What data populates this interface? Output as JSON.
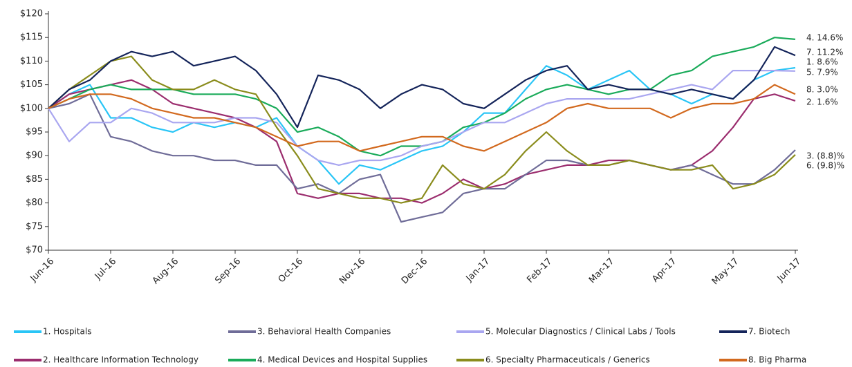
{
  "chart_data": {
    "type": "line",
    "categories": [
      "Jun-16",
      null,
      null,
      "Jul-16",
      null,
      null,
      "Aug-16",
      null,
      null,
      "Sep-16",
      null,
      null,
      "Oct-16",
      null,
      null,
      "Nov-16",
      null,
      null,
      "Dec-16",
      null,
      null,
      "Jan-17",
      null,
      null,
      "Feb-17",
      null,
      null,
      "Mar-17",
      null,
      null,
      "Apr-17",
      null,
      null,
      "May-17",
      null,
      null,
      "Jun-17"
    ],
    "ylim": [
      70,
      120
    ],
    "yticks": [
      {
        "value": 70,
        "label": "$70"
      },
      {
        "value": 75,
        "label": "$75"
      },
      {
        "value": 80,
        "label": "$80"
      },
      {
        "value": 85,
        "label": "$85"
      },
      {
        "value": 90,
        "label": "$90"
      },
      {
        "value": 95,
        "label": "$95"
      },
      {
        "value": 100,
        "label": "$100"
      },
      {
        "value": 105,
        "label": "$105"
      },
      {
        "value": 110,
        "label": "$110"
      },
      {
        "value": 115,
        "label": "$115"
      },
      {
        "value": 120,
        "label": "$120"
      }
    ],
    "grid": false,
    "legend": "bottom",
    "series": [
      {
        "name": "1. Hospitals",
        "color": "#29c5f6",
        "end_label": "1. 8.6%",
        "values": [
          100,
          103,
          105,
          98,
          98,
          96,
          95,
          97,
          96,
          97,
          96,
          98,
          92,
          89,
          84,
          88,
          87,
          89,
          91,
          92,
          95,
          99,
          99,
          104,
          109,
          107,
          104,
          106,
          108,
          104,
          103,
          101,
          103,
          102,
          106,
          108,
          108.6
        ]
      },
      {
        "name": "2. Healthcare Information Technology",
        "color": "#9b2d6e",
        "end_label": "2. 1.6%",
        "values": [
          100,
          103,
          104,
          105,
          106,
          104,
          101,
          100,
          99,
          98,
          96,
          93,
          82,
          81,
          82,
          82,
          81,
          81,
          80,
          82,
          85,
          83,
          84,
          86,
          87,
          88,
          88,
          89,
          89,
          88,
          87,
          88,
          91,
          96,
          102,
          103,
          101.6
        ]
      },
      {
        "name": "3. Behavioral Health Companies",
        "color": "#6f6c98",
        "end_label": "3. (8.8)%",
        "values": [
          100,
          101,
          103,
          94,
          93,
          91,
          90,
          90,
          89,
          89,
          88,
          88,
          83,
          84,
          82,
          85,
          86,
          76,
          77,
          78,
          82,
          83,
          83,
          86,
          89,
          89,
          88,
          88,
          89,
          88,
          87,
          88,
          86,
          84,
          84,
          87,
          91.2
        ]
      },
      {
        "name": "4. Medical Devices and Hospital Supplies",
        "color": "#1aab5a",
        "end_label": "4. 14.6%",
        "values": [
          100,
          102,
          104,
          105,
          104,
          104,
          104,
          103,
          103,
          103,
          102,
          100,
          95,
          96,
          94,
          91,
          90,
          92,
          92,
          93,
          96,
          97,
          99,
          102,
          104,
          105,
          104,
          103,
          104,
          104,
          107,
          108,
          111,
          112,
          113,
          115,
          114.6
        ]
      },
      {
        "name": "5. Molecular Diagnostics / Clinical Labs / Tools",
        "color": "#a9a6f0",
        "end_label": "5. 7.9%",
        "values": [
          100,
          93,
          97,
          97,
          100,
          99,
          97,
          97,
          97,
          98,
          98,
          97,
          92,
          89,
          88,
          89,
          89,
          90,
          92,
          93,
          95,
          97,
          97,
          99,
          101,
          102,
          102,
          102,
          102,
          103,
          104,
          105,
          104,
          108,
          108,
          108,
          107.9
        ]
      },
      {
        "name": "6. Specialty Pharmaceuticals / Generics",
        "color": "#8a8c1c",
        "end_label": "6. (9.8)%",
        "values": [
          100,
          104,
          107,
          110,
          111,
          106,
          104,
          104,
          106,
          104,
          103,
          96,
          90,
          83,
          82,
          81,
          81,
          80,
          81,
          88,
          84,
          83,
          86,
          91,
          95,
          91,
          88,
          88,
          89,
          88,
          87,
          87,
          88,
          83,
          84,
          86,
          90.2
        ]
      },
      {
        "name": "7. Biotech",
        "color": "#14245a",
        "end_label": "7. 11.2%",
        "values": [
          100,
          104,
          106,
          110,
          112,
          111,
          112,
          109,
          110,
          111,
          108,
          103,
          96,
          107,
          106,
          104,
          100,
          103,
          105,
          104,
          101,
          100,
          103,
          106,
          108,
          109,
          104,
          105,
          104,
          104,
          103,
          104,
          103,
          102,
          106,
          113,
          111.2
        ]
      },
      {
        "name": "8. Big Pharma",
        "color": "#d2691e",
        "end_label": "8. 3.0%",
        "values": [
          100,
          102,
          103,
          103,
          102,
          100,
          99,
          98,
          98,
          97,
          96,
          94,
          92,
          93,
          93,
          91,
          92,
          93,
          94,
          94,
          92,
          91,
          93,
          95,
          97,
          100,
          101,
          100,
          100,
          100,
          98,
          100,
          101,
          101,
          102,
          105,
          103.0
        ]
      }
    ]
  }
}
